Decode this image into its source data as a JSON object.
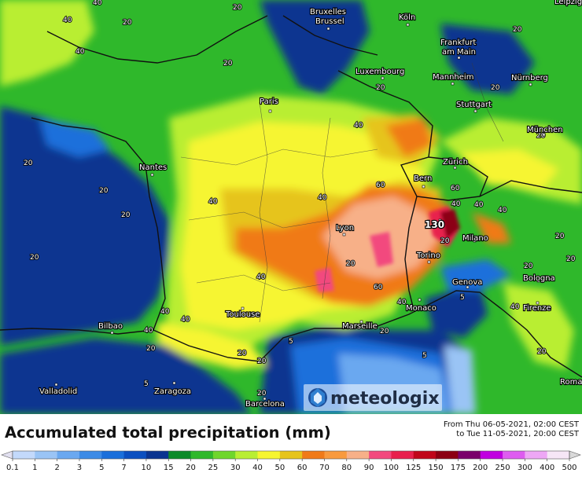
{
  "map": {
    "title": "Accumulated total precipitation (mm)",
    "period_from": "From Thu 06-05-2021, 02:00 CEST",
    "period_to": "to Tue 11-05-2021, 20:00 CEST",
    "logo_text": "meteologix",
    "max_label": "130",
    "cities": [
      {
        "id": "bruxelles",
        "lines": [
          "Bruxelles",
          "Brussel"
        ]
      },
      {
        "id": "koln",
        "lines": [
          "Köln"
        ]
      },
      {
        "id": "leipzig",
        "lines": [
          "Leipzig"
        ]
      },
      {
        "id": "frankfurt",
        "lines": [
          "Frankfurt",
          "am Main"
        ]
      },
      {
        "id": "luxembourg",
        "lines": [
          "Luxembourg"
        ]
      },
      {
        "id": "mannheim",
        "lines": [
          "Mannheim"
        ]
      },
      {
        "id": "nurnberg",
        "lines": [
          "Nürnberg"
        ]
      },
      {
        "id": "paris",
        "lines": [
          "Paris"
        ]
      },
      {
        "id": "stuttgart",
        "lines": [
          "Stuttgart"
        ]
      },
      {
        "id": "munchen",
        "lines": [
          "München"
        ]
      },
      {
        "id": "zurich",
        "lines": [
          "Zürich"
        ]
      },
      {
        "id": "nantes",
        "lines": [
          "Nantes"
        ]
      },
      {
        "id": "bern",
        "lines": [
          "Bern"
        ]
      },
      {
        "id": "lyon",
        "lines": [
          "Lyon"
        ]
      },
      {
        "id": "milano",
        "lines": [
          "Milano"
        ]
      },
      {
        "id": "torino",
        "lines": [
          "Torino"
        ]
      },
      {
        "id": "genova",
        "lines": [
          "Genova"
        ]
      },
      {
        "id": "bologna",
        "lines": [
          "Bologna"
        ]
      },
      {
        "id": "monaco",
        "lines": [
          "Monaco"
        ]
      },
      {
        "id": "firenze",
        "lines": [
          "Firenze"
        ]
      },
      {
        "id": "toulouse",
        "lines": [
          "Toulouse"
        ]
      },
      {
        "id": "marseille",
        "lines": [
          "Marseille"
        ]
      },
      {
        "id": "bilbao",
        "lines": [
          "Bilbao"
        ]
      },
      {
        "id": "valladolid",
        "lines": [
          "Valladolid"
        ]
      },
      {
        "id": "zaragoza",
        "lines": [
          "Zaragoza"
        ]
      },
      {
        "id": "barcelona",
        "lines": [
          "Barcelona"
        ]
      },
      {
        "id": "roma",
        "lines": [
          "Roma"
        ]
      }
    ],
    "contour_values": [
      "40",
      "40",
      "40",
      "20",
      "20",
      "20",
      "20",
      "20",
      "20",
      "20",
      "40",
      "40",
      "40",
      "60",
      "60",
      "60",
      "40",
      "40",
      "40",
      "20",
      "20",
      "20",
      "20",
      "20",
      "40",
      "40",
      "40",
      "20",
      "20",
      "20",
      "20",
      "40",
      "5",
      "5",
      "5",
      "5",
      "20",
      "20",
      "40",
      "40",
      "20",
      "20",
      "20",
      "20"
    ]
  },
  "legend": {
    "values": [
      "0.1",
      "1",
      "2",
      "3",
      "5",
      "7",
      "10",
      "15",
      "20",
      "25",
      "30",
      "40",
      "50",
      "60",
      "70",
      "80",
      "90",
      "100",
      "125",
      "150",
      "175",
      "200",
      "250",
      "300",
      "400",
      "500"
    ],
    "colors": [
      "#e2e0f0",
      "#c3d9fb",
      "#9ac4f5",
      "#6aa8f0",
      "#3d8be6",
      "#1a6fdb",
      "#0b4fc0",
      "#0a3490",
      "#0d8a2a",
      "#2fb82b",
      "#6fd62c",
      "#b9ee33",
      "#f6f530",
      "#e6c41c",
      "#f07a18",
      "#f89a3e",
      "#f7b088",
      "#f24a7e",
      "#e8204d",
      "#c0061a",
      "#8c0012",
      "#7a006a",
      "#c000e0",
      "#de5cf0",
      "#eea7f5",
      "#f6e6f6",
      "#d9d9d9"
    ]
  }
}
